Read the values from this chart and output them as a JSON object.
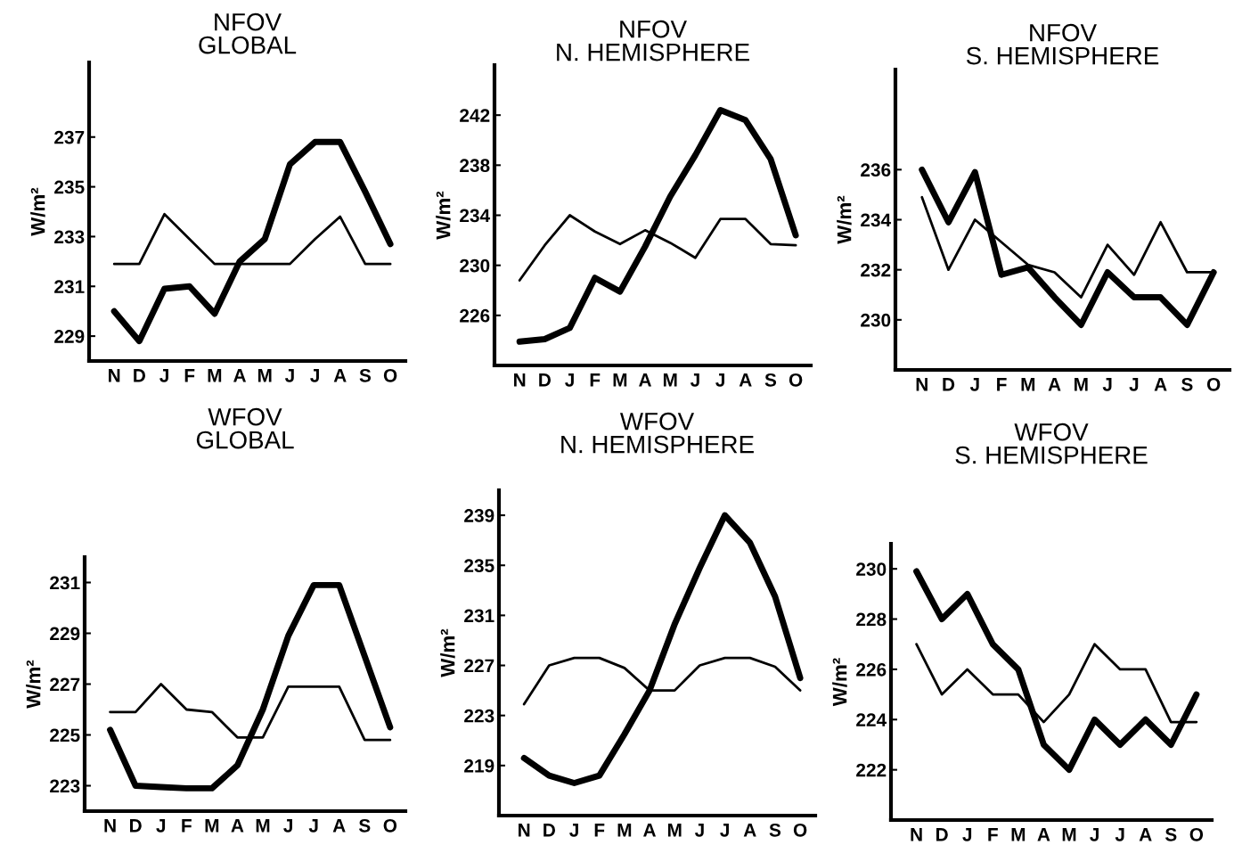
{
  "chart_data": [
    {
      "type": "line",
      "title": "NFOV\nGLOBAL",
      "ylabel": "W/m²",
      "categories": [
        "N",
        "D",
        "J",
        "F",
        "M",
        "A",
        "M",
        "J",
        "J",
        "A",
        "S",
        "O"
      ],
      "ylim": [
        228,
        240
      ],
      "yticks": [
        229,
        231,
        233,
        235,
        237
      ],
      "series": [
        {
          "color": "#000000",
          "values": [
            230,
            228.8,
            230.9,
            231,
            229.9,
            232,
            232.9,
            235.9,
            236.8,
            236.8,
            234.8,
            232.7
          ]
        },
        {
          "color": "#000000",
          "values": [
            231.9,
            231.9,
            233.9,
            232.9,
            231.9,
            231.9,
            231.9,
            231.9,
            232.9,
            233.8,
            231.9,
            231.9
          ]
        }
      ]
    },
    {
      "type": "line",
      "title": "NFOV\nN. HEMISPHERE",
      "ylabel": "W/m²",
      "categories": [
        "N",
        "D",
        "J",
        "F",
        "M",
        "A",
        "M",
        "J",
        "J",
        "A",
        "S",
        "O"
      ],
      "ylim": [
        222,
        246
      ],
      "yticks": [
        226,
        230,
        234,
        238,
        242
      ],
      "series": [
        {
          "color": "#000000",
          "values": [
            223.9,
            224.1,
            225,
            229,
            227.9,
            231.5,
            235.5,
            238.8,
            242.4,
            241.6,
            238.5,
            232.4
          ]
        },
        {
          "color": "#000000",
          "values": [
            228.8,
            231.6,
            234,
            232.7,
            231.7,
            232.8,
            231.8,
            230.6,
            233.7,
            233.7,
            231.7,
            231.6
          ]
        }
      ]
    },
    {
      "type": "line",
      "title": "NFOV\nS. HEMISPHERE",
      "ylabel": "W/m²",
      "categories": [
        "N",
        "D",
        "J",
        "F",
        "M",
        "A",
        "M",
        "J",
        "J",
        "A",
        "S",
        "O"
      ],
      "ylim": [
        228,
        240
      ],
      "yticks": [
        230,
        232,
        234,
        236
      ],
      "series": [
        {
          "color": "#000000",
          "values": [
            236,
            233.9,
            235.9,
            231.8,
            232.1,
            230.9,
            229.8,
            231.9,
            230.9,
            230.9,
            229.8,
            231.9
          ]
        },
        {
          "color": "#000000",
          "values": [
            234.9,
            232,
            234,
            233.1,
            232.2,
            231.9,
            230.9,
            233,
            231.8,
            233.9,
            231.9,
            231.9
          ]
        }
      ]
    },
    {
      "type": "line",
      "title": "WFOV\nGLOBAL",
      "ylabel": "W/m²",
      "categories": [
        "N",
        "D",
        "J",
        "F",
        "M",
        "A",
        "M",
        "J",
        "J",
        "A",
        "S",
        "O"
      ],
      "ylim": [
        222,
        232
      ],
      "yticks": [
        223,
        225,
        227,
        229,
        231
      ],
      "series": [
        {
          "color": "#000000",
          "values": [
            225.2,
            223,
            222.95,
            222.9,
            222.9,
            223.8,
            226,
            228.9,
            230.9,
            230.9,
            228.1,
            225.3
          ]
        },
        {
          "color": "#000000",
          "values": [
            225.9,
            225.9,
            227,
            226,
            225.9,
            224.9,
            224.9,
            226.9,
            226.9,
            226.9,
            224.8,
            224.8
          ]
        }
      ]
    },
    {
      "type": "line",
      "title": "WFOV\nN. HEMISPHERE",
      "ylabel": "W/m²",
      "categories": [
        "N",
        "D",
        "J",
        "F",
        "M",
        "A",
        "M",
        "J",
        "J",
        "A",
        "S",
        "O"
      ],
      "ylim": [
        215,
        241
      ],
      "yticks": [
        219,
        223,
        227,
        231,
        235,
        239
      ],
      "series": [
        {
          "color": "#000000",
          "values": [
            219.6,
            218.2,
            217.6,
            218.2,
            221.5,
            225,
            230.3,
            234.8,
            239,
            236.8,
            232.5,
            226
          ]
        },
        {
          "color": "#000000",
          "values": [
            223.9,
            227,
            227.6,
            227.6,
            226.8,
            225,
            225,
            227,
            227.6,
            227.6,
            226.9,
            225
          ]
        }
      ]
    },
    {
      "type": "line",
      "title": "WFOV\nS. HEMISPHERE",
      "ylabel": "W/m²",
      "categories": [
        "N",
        "D",
        "J",
        "F",
        "M",
        "A",
        "M",
        "J",
        "J",
        "A",
        "S",
        "O"
      ],
      "ylim": [
        220,
        231
      ],
      "yticks": [
        222,
        224,
        226,
        228,
        230
      ],
      "series": [
        {
          "color": "#000000",
          "values": [
            229.9,
            228,
            229,
            227,
            226,
            223,
            222,
            224,
            223,
            224,
            223,
            225
          ]
        },
        {
          "color": "#000000",
          "values": [
            227,
            225,
            226,
            225,
            225,
            223.9,
            225,
            227,
            226,
            226,
            223.9,
            223.9
          ]
        }
      ]
    }
  ]
}
